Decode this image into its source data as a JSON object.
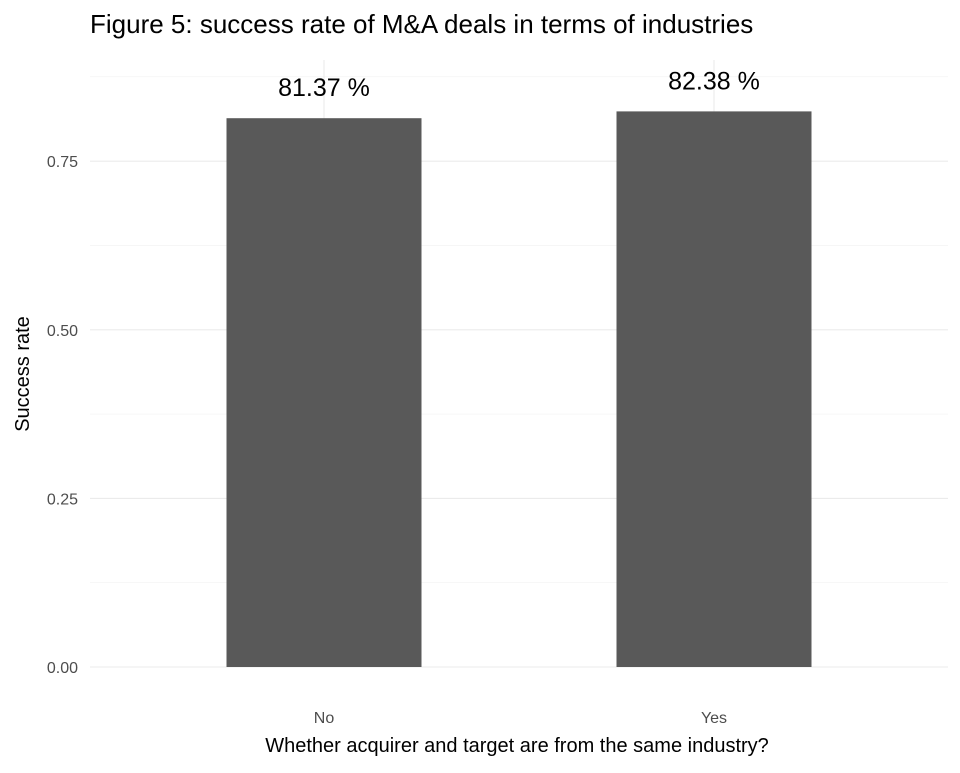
{
  "chart_data": {
    "type": "bar",
    "title": "Figure 5: success rate of M&A deals in terms of industries",
    "xlabel": "Whether acquirer and target are from the same industry?",
    "ylabel": "Success rate",
    "categories": [
      "No",
      "Yes"
    ],
    "values": [
      0.8137,
      0.8238
    ],
    "data_labels": [
      "81.37 %",
      "82.38 %"
    ],
    "ylim": [
      0,
      0.9
    ],
    "yticks": [
      0,
      0.25,
      0.5,
      0.75
    ],
    "ytick_labels": [
      "0.00",
      "0.25",
      "0.50",
      "0.75"
    ],
    "grid": true,
    "legend": "none",
    "bar_color": "#595959"
  }
}
